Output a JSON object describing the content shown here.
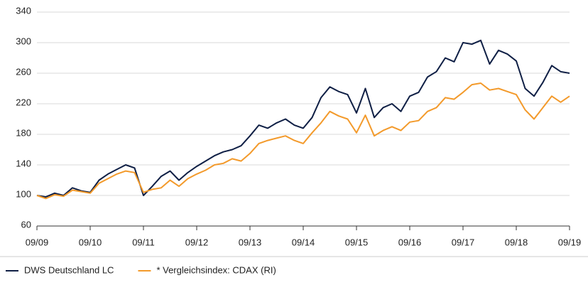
{
  "chart_data": {
    "type": "line",
    "x": [
      "09/09",
      "11/09",
      "01/10",
      "03/10",
      "05/10",
      "07/10",
      "09/10",
      "11/10",
      "01/11",
      "03/11",
      "05/11",
      "07/11",
      "09/11",
      "11/11",
      "01/12",
      "03/12",
      "05/12",
      "07/12",
      "09/12",
      "11/12",
      "01/13",
      "03/13",
      "05/13",
      "07/13",
      "09/13",
      "11/13",
      "01/14",
      "03/14",
      "05/14",
      "07/14",
      "09/14",
      "11/14",
      "01/15",
      "03/15",
      "05/15",
      "07/15",
      "09/15",
      "11/15",
      "01/16",
      "03/16",
      "05/16",
      "07/16",
      "09/16",
      "11/16",
      "01/17",
      "03/17",
      "05/17",
      "07/17",
      "09/17",
      "11/17",
      "01/18",
      "03/18",
      "05/18",
      "07/18",
      "09/18",
      "11/18",
      "01/19",
      "03/19",
      "05/19",
      "07/19",
      "09/19"
    ],
    "series": [
      {
        "name": "DWS Deutschland LC",
        "color": "#0f1f45",
        "values": [
          100,
          98,
          103,
          100,
          110,
          106,
          104,
          120,
          128,
          134,
          140,
          136,
          100,
          112,
          125,
          132,
          120,
          130,
          138,
          145,
          152,
          157,
          160,
          165,
          178,
          192,
          188,
          195,
          200,
          192,
          188,
          202,
          228,
          242,
          236,
          232,
          208,
          240,
          202,
          215,
          220,
          210,
          230,
          235,
          255,
          262,
          280,
          275,
          300,
          298,
          303,
          272,
          290,
          285,
          276,
          240,
          230,
          248,
          270,
          262,
          260
        ]
      },
      {
        "name": "* Vergleichsindex: CDAX (RI)",
        "color": "#f39a2b",
        "values": [
          100,
          96,
          101,
          99,
          107,
          105,
          103,
          116,
          122,
          128,
          132,
          130,
          104,
          108,
          110,
          120,
          112,
          122,
          128,
          133,
          140,
          142,
          148,
          145,
          155,
          168,
          172,
          175,
          178,
          172,
          168,
          182,
          195,
          210,
          204,
          200,
          182,
          205,
          178,
          185,
          190,
          185,
          196,
          198,
          210,
          215,
          228,
          226,
          235,
          245,
          247,
          238,
          240,
          236,
          232,
          212,
          200,
          215,
          230,
          222,
          230
        ]
      }
    ],
    "xticks": [
      "09/09",
      "09/10",
      "09/11",
      "09/12",
      "09/13",
      "09/14",
      "09/15",
      "09/16",
      "09/17",
      "09/18",
      "09/19"
    ],
    "ylim": [
      60,
      340
    ],
    "yticks": [
      60,
      100,
      140,
      180,
      220,
      260,
      300,
      340
    ],
    "grid": true
  }
}
